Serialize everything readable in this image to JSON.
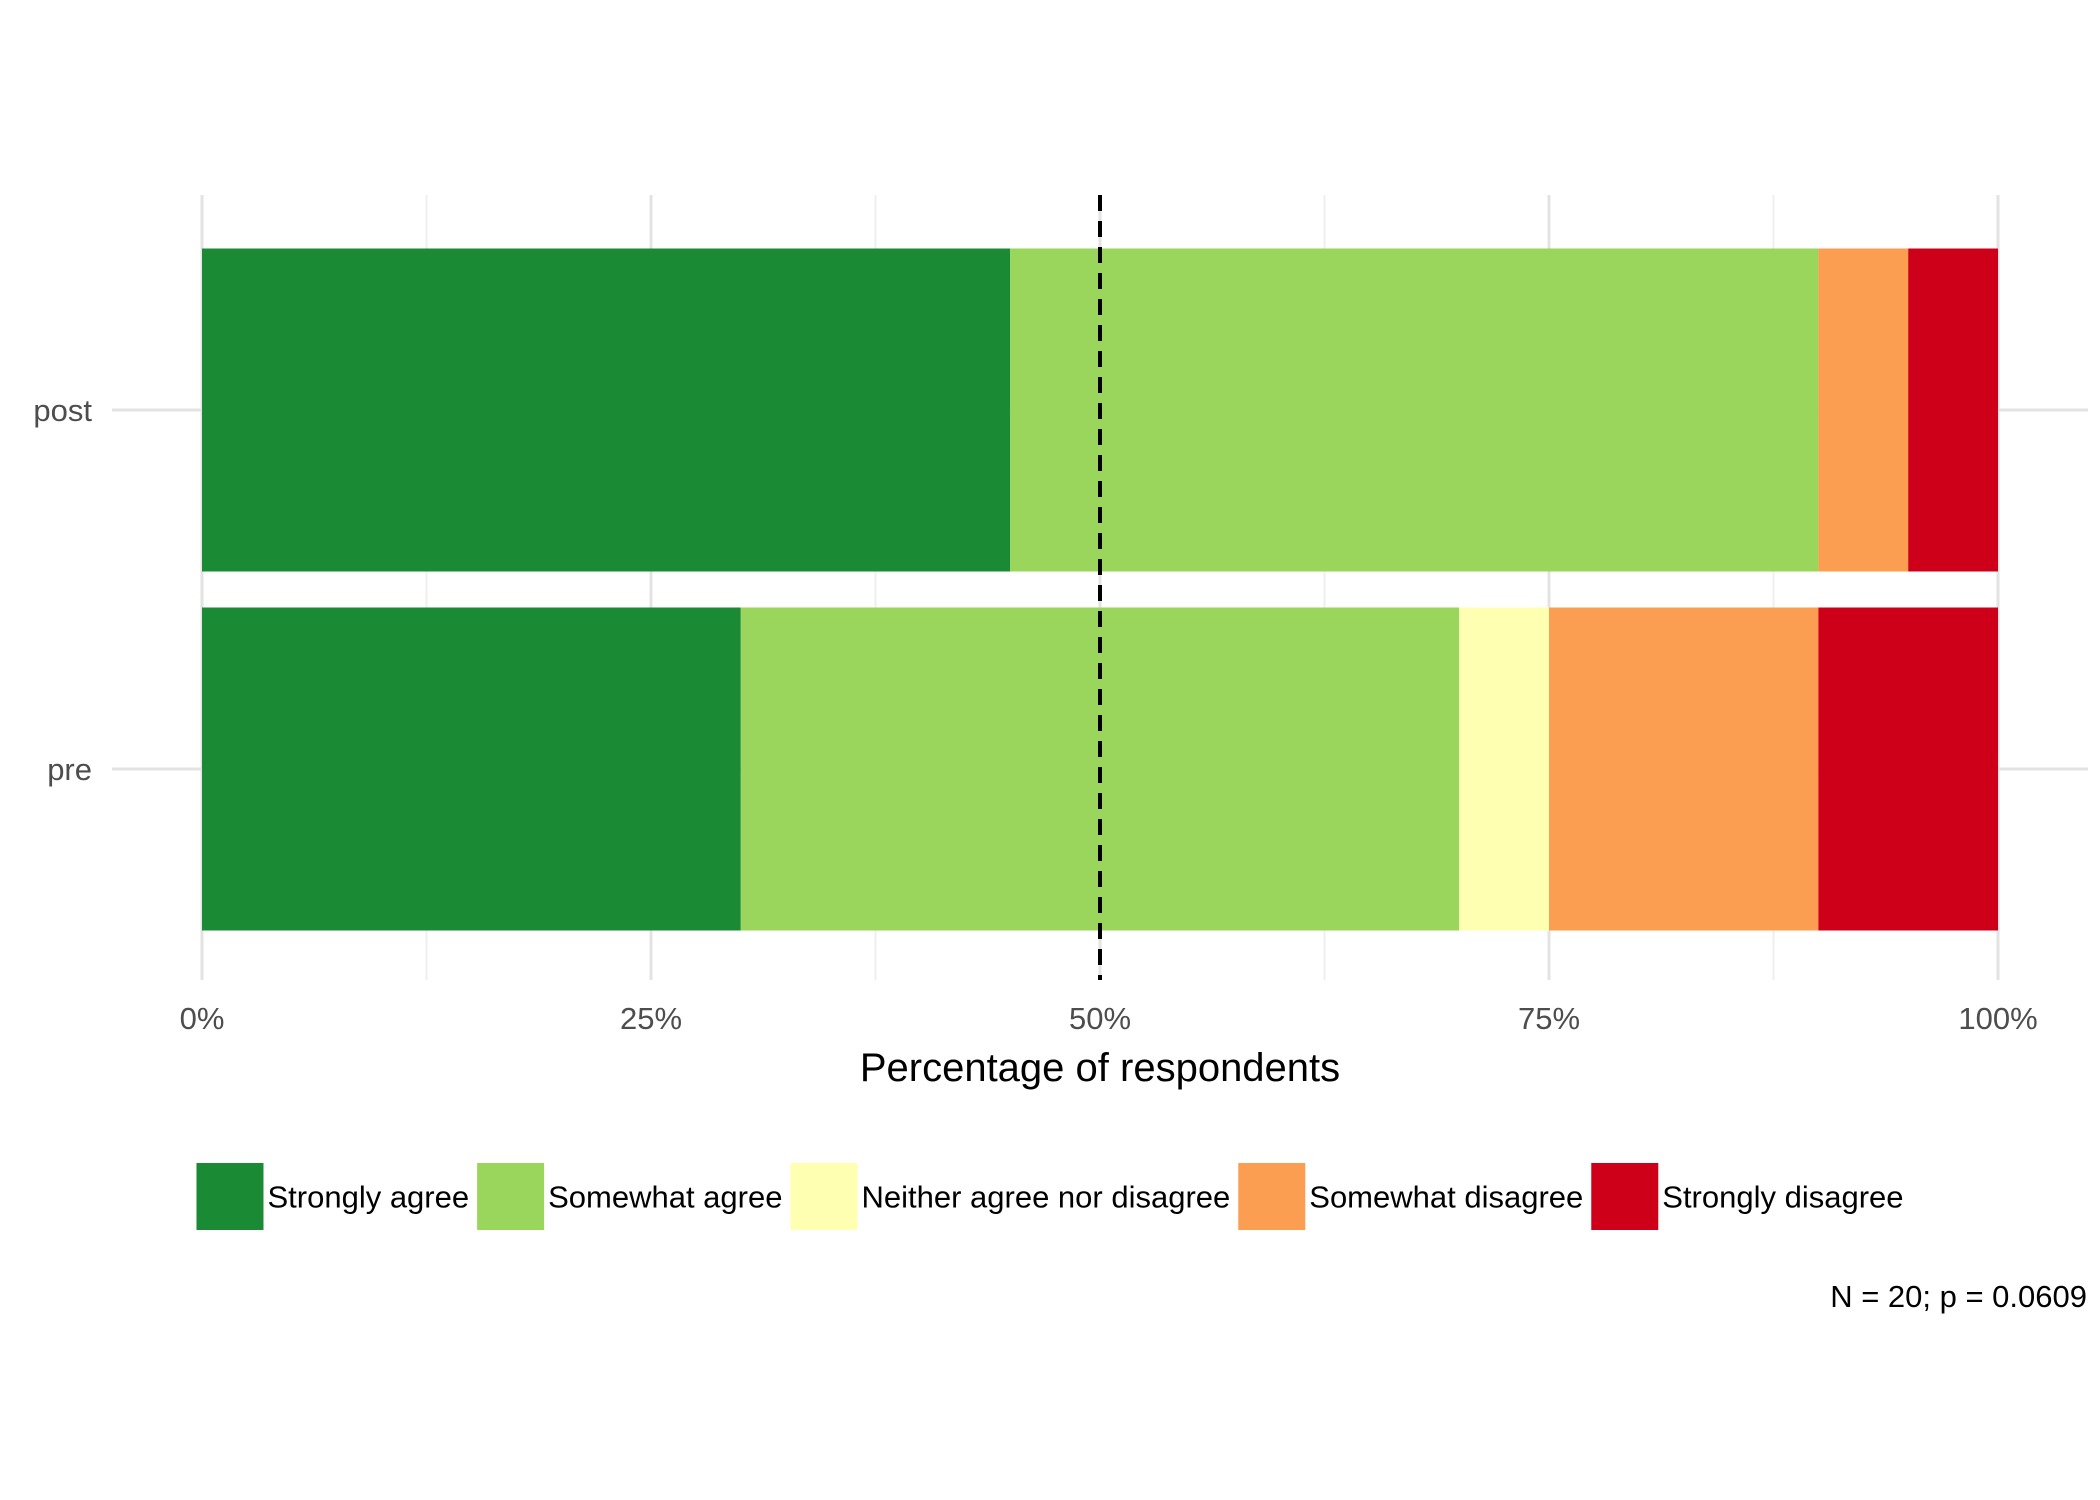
{
  "chart_data": {
    "type": "bar",
    "orientation": "horizontal",
    "stacked": true,
    "categories": [
      "post",
      "pre"
    ],
    "series": [
      {
        "name": "Strongly agree",
        "color": "#1a8a34",
        "values": [
          45,
          30
        ]
      },
      {
        "name": "Somewhat agree",
        "color": "#9ad65c",
        "values": [
          45,
          40
        ]
      },
      {
        "name": "Neither agree nor disagree",
        "color": "#ffffb2",
        "values": [
          0,
          5
        ]
      },
      {
        "name": "Somewhat disagree",
        "color": "#fc9e52",
        "values": [
          5,
          15
        ]
      },
      {
        "name": "Strongly disagree",
        "color": "#ce0019",
        "values": [
          5,
          10
        ]
      }
    ],
    "xlim": [
      0,
      100
    ],
    "xticks": [
      0,
      25,
      50,
      75,
      100
    ],
    "xtick_labels": [
      "0%",
      "25%",
      "50%",
      "75%",
      "100%"
    ],
    "xlabel": "Percentage of respondents",
    "ylabel": "",
    "title": "",
    "reference_line": {
      "x": 50,
      "style": "dashed",
      "color": "#000000"
    },
    "grid": true,
    "legend_position": "bottom",
    "caption": "N = 20; p = 0.0609"
  }
}
